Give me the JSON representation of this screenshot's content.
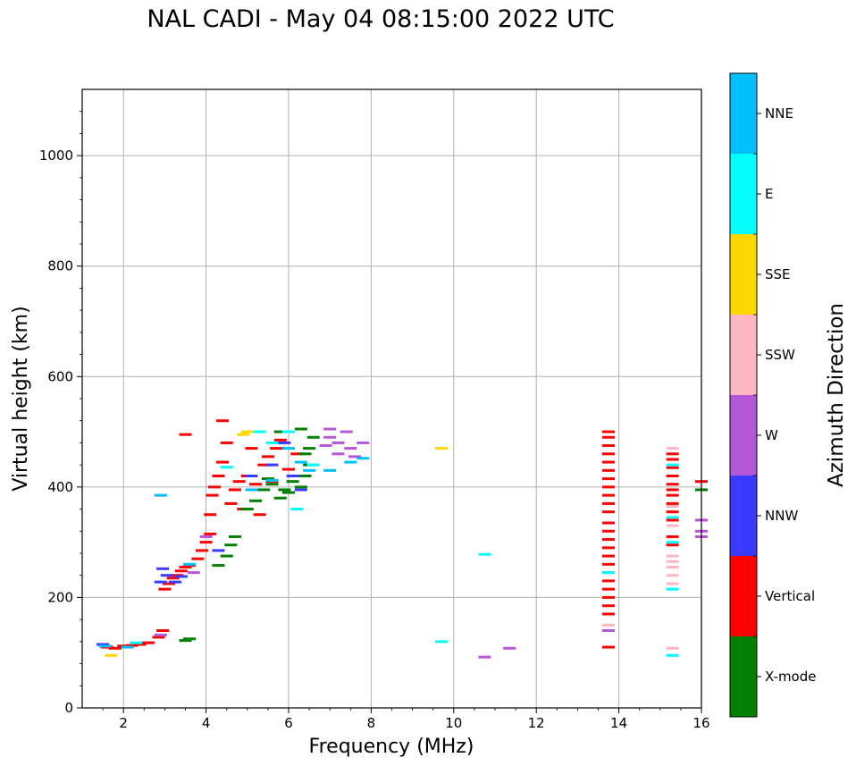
{
  "chart_data": {
    "type": "scatter",
    "title": "NAL CADI - May 04 08:15:00 2022 UTC",
    "xlabel": "Frequency (MHz)",
    "ylabel": "Virtual height (km)",
    "xlim": [
      1,
      16
    ],
    "ylim": [
      0,
      1120
    ],
    "xticks": [
      2,
      4,
      6,
      8,
      10,
      12,
      14,
      16
    ],
    "yticks": [
      0,
      200,
      400,
      600,
      800,
      1000
    ],
    "grid": true,
    "colorbar": {
      "label": "Azimuth Direction",
      "categories": [
        {
          "name": "X-mode",
          "color": "#008000"
        },
        {
          "name": "Vertical",
          "color": "#ff0000"
        },
        {
          "name": "NNW",
          "color": "#3a3aff"
        },
        {
          "name": "W",
          "color": "#b656d8"
        },
        {
          "name": "SSW",
          "color": "#ffb6c1"
        },
        {
          "name": "SSE",
          "color": "#ffd700"
        },
        {
          "name": "E",
          "color": "#00ffff"
        },
        {
          "name": "NNE",
          "color": "#00bfff"
        }
      ]
    },
    "series": [
      {
        "name": "Vertical",
        "color": "#ff0000",
        "points": [
          [
            1.6,
            110
          ],
          [
            1.8,
            108
          ],
          [
            2.0,
            112
          ],
          [
            2.2,
            113
          ],
          [
            2.4,
            115
          ],
          [
            2.6,
            118
          ],
          [
            2.85,
            128
          ],
          [
            2.95,
            140
          ],
          [
            3.0,
            215
          ],
          [
            3.1,
            225
          ],
          [
            3.2,
            235
          ],
          [
            3.3,
            240
          ],
          [
            3.4,
            248
          ],
          [
            3.5,
            255
          ],
          [
            3.6,
            258
          ],
          [
            3.5,
            495
          ],
          [
            3.8,
            270
          ],
          [
            3.9,
            285
          ],
          [
            4.0,
            300
          ],
          [
            4.1,
            315
          ],
          [
            4.1,
            350
          ],
          [
            4.15,
            385
          ],
          [
            4.2,
            400
          ],
          [
            4.3,
            420
          ],
          [
            4.4,
            445
          ],
          [
            4.5,
            480
          ],
          [
            4.6,
            370
          ],
          [
            4.7,
            395
          ],
          [
            4.8,
            410
          ],
          [
            5.0,
            420
          ],
          [
            5.2,
            405
          ],
          [
            5.4,
            440
          ],
          [
            5.5,
            455
          ],
          [
            5.7,
            470
          ],
          [
            5.8,
            485
          ],
          [
            6.0,
            432
          ],
          [
            6.2,
            460
          ],
          [
            5.3,
            350
          ],
          [
            4.9,
            360
          ],
          [
            5.1,
            470
          ],
          [
            5.6,
            410
          ],
          [
            4.4,
            520
          ],
          [
            13.75,
            110
          ],
          [
            13.75,
            170
          ],
          [
            13.75,
            185
          ],
          [
            13.75,
            200
          ],
          [
            13.75,
            215
          ],
          [
            13.75,
            230
          ],
          [
            13.75,
            245
          ],
          [
            13.75,
            260
          ],
          [
            13.75,
            275
          ],
          [
            13.75,
            290
          ],
          [
            13.75,
            305
          ],
          [
            13.75,
            320
          ],
          [
            13.75,
            335
          ],
          [
            13.75,
            355
          ],
          [
            13.75,
            370
          ],
          [
            13.75,
            385
          ],
          [
            13.75,
            400
          ],
          [
            13.75,
            415
          ],
          [
            13.75,
            430
          ],
          [
            13.75,
            445
          ],
          [
            13.75,
            460
          ],
          [
            13.75,
            475
          ],
          [
            13.75,
            490
          ],
          [
            13.75,
            500
          ],
          [
            15.3,
            295
          ],
          [
            15.3,
            310
          ],
          [
            15.3,
            340
          ],
          [
            15.3,
            355
          ],
          [
            15.3,
            370
          ],
          [
            15.3,
            385
          ],
          [
            15.3,
            395
          ],
          [
            15.3,
            405
          ],
          [
            15.3,
            420
          ],
          [
            15.3,
            435
          ],
          [
            15.3,
            450
          ],
          [
            15.3,
            460
          ],
          [
            16.0,
            410
          ]
        ]
      },
      {
        "name": "X-mode",
        "color": "#008000",
        "points": [
          [
            3.5,
            122
          ],
          [
            3.6,
            125
          ],
          [
            4.3,
            258
          ],
          [
            4.5,
            275
          ],
          [
            4.6,
            295
          ],
          [
            4.7,
            310
          ],
          [
            5.0,
            360
          ],
          [
            5.2,
            375
          ],
          [
            5.4,
            395
          ],
          [
            5.6,
            405
          ],
          [
            5.8,
            380
          ],
          [
            6.0,
            390
          ],
          [
            6.1,
            410
          ],
          [
            6.3,
            400
          ],
          [
            6.4,
            420
          ],
          [
            6.5,
            440
          ],
          [
            6.5,
            470
          ],
          [
            6.6,
            490
          ],
          [
            6.3,
            505
          ],
          [
            5.9,
            395
          ],
          [
            5.5,
            415
          ],
          [
            5.8,
            500
          ],
          [
            6.4,
            460
          ],
          [
            16.0,
            395
          ]
        ]
      },
      {
        "name": "NNW",
        "color": "#3a3aff",
        "points": [
          [
            1.5,
            115
          ],
          [
            2.9,
            228
          ],
          [
            2.95,
            252
          ],
          [
            3.05,
            240
          ],
          [
            3.25,
            228
          ],
          [
            3.4,
            238
          ],
          [
            4.3,
            285
          ],
          [
            5.1,
            420
          ],
          [
            5.6,
            440
          ],
          [
            5.9,
            480
          ],
          [
            6.1,
            420
          ],
          [
            6.3,
            395
          ]
        ]
      },
      {
        "name": "W",
        "color": "#b656d8",
        "points": [
          [
            2.9,
            132
          ],
          [
            3.7,
            245
          ],
          [
            4.0,
            310
          ],
          [
            6.9,
            475
          ],
          [
            7.0,
            490
          ],
          [
            7.2,
            480
          ],
          [
            7.4,
            500
          ],
          [
            7.5,
            470
          ],
          [
            7.6,
            455
          ],
          [
            7.2,
            460
          ],
          [
            7.8,
            480
          ],
          [
            7.0,
            505
          ],
          [
            10.75,
            92
          ],
          [
            11.35,
            108
          ],
          [
            13.75,
            140
          ],
          [
            16.0,
            340
          ],
          [
            16.0,
            320
          ],
          [
            16.0,
            310
          ]
        ]
      },
      {
        "name": "SSW",
        "color": "#ffb6c1",
        "points": [
          [
            13.75,
            150
          ],
          [
            15.3,
            225
          ],
          [
            15.3,
            240
          ],
          [
            15.3,
            255
          ],
          [
            15.3,
            275
          ],
          [
            15.3,
            265
          ],
          [
            15.3,
            330
          ],
          [
            15.3,
            365
          ],
          [
            15.3,
            470
          ],
          [
            15.3,
            108
          ]
        ]
      },
      {
        "name": "SSE",
        "color": "#ffd700",
        "points": [
          [
            1.7,
            95
          ],
          [
            4.9,
            495
          ],
          [
            5.0,
            500
          ],
          [
            9.7,
            470
          ]
        ]
      },
      {
        "name": "E",
        "color": "#00ffff",
        "points": [
          [
            2.3,
            118
          ],
          [
            4.5,
            436
          ],
          [
            5.3,
            500
          ],
          [
            5.6,
            480
          ],
          [
            6.0,
            500
          ],
          [
            6.2,
            360
          ],
          [
            6.6,
            440
          ],
          [
            9.7,
            120
          ],
          [
            10.75,
            278
          ],
          [
            13.75,
            245
          ],
          [
            15.3,
            95
          ],
          [
            15.3,
            215
          ],
          [
            15.3,
            300
          ],
          [
            15.3,
            345
          ],
          [
            15.3,
            440
          ]
        ]
      },
      {
        "name": "NNE",
        "color": "#00bfff",
        "points": [
          [
            1.55,
            112
          ],
          [
            2.1,
            110
          ],
          [
            2.9,
            385
          ],
          [
            3.6,
            260
          ],
          [
            5.1,
            395
          ],
          [
            5.6,
            412
          ],
          [
            6.0,
            470
          ],
          [
            6.3,
            445
          ],
          [
            6.5,
            430
          ],
          [
            7.8,
            452
          ],
          [
            7.5,
            445
          ],
          [
            7.0,
            430
          ]
        ]
      }
    ]
  }
}
